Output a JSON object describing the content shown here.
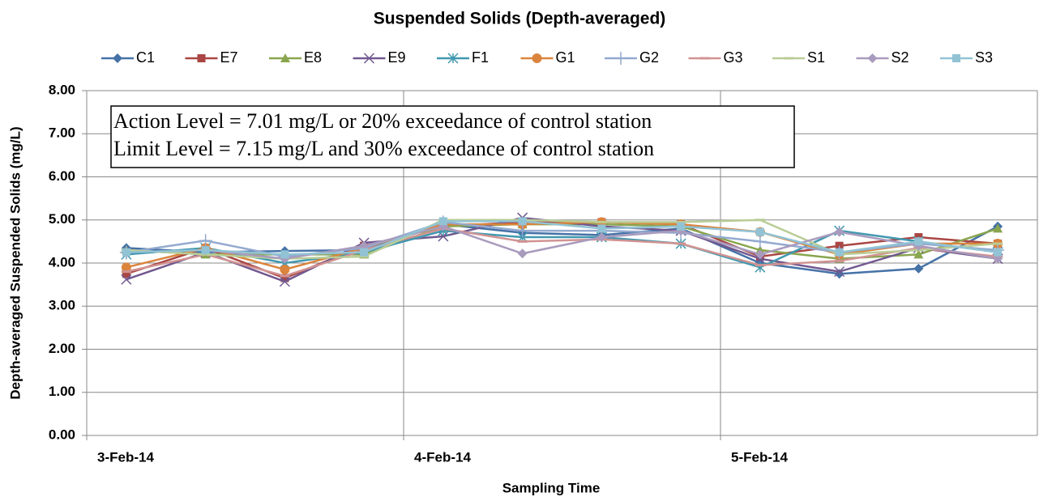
{
  "chart_data": {
    "type": "line",
    "title": "Suspended Solids (Depth-averaged)",
    "x_label": "Sampling Time",
    "y_label": "Depth-averaged Suspended Solids  (mg/L)",
    "annotations": [
      "Action Level = 7.01 mg/L or 20% exceedance of control station",
      "Limit Level = 7.15 mg/L and 30% exceedance of control station"
    ],
    "x": [
      0.125,
      0.375,
      0.625,
      0.875,
      1.125,
      1.375,
      1.625,
      1.875,
      2.125,
      2.375,
      2.625,
      2.875
    ],
    "xlim": [
      0,
      3
    ],
    "xticks": [
      {
        "value": 0,
        "label": "3-Feb-14"
      },
      {
        "value": 1,
        "label": "4-Feb-14"
      },
      {
        "value": 2,
        "label": "5-Feb-14"
      }
    ],
    "ylim": [
      0,
      8
    ],
    "yticks": [
      {
        "value": 0,
        "label": "0.00"
      },
      {
        "value": 1,
        "label": "1.00"
      },
      {
        "value": 2,
        "label": "2.00"
      },
      {
        "value": 3,
        "label": "3.00"
      },
      {
        "value": 4,
        "label": "4.00"
      },
      {
        "value": 5,
        "label": "5.00"
      },
      {
        "value": 6,
        "label": "6.00"
      },
      {
        "value": 7,
        "label": "7.00"
      },
      {
        "value": 8,
        "label": "8.00"
      }
    ],
    "grid": true,
    "legend": "top",
    "series": [
      {
        "name": "C1",
        "color": "#4572a7",
        "marker": "diamond",
        "values": [
          4.35,
          4.25,
          4.28,
          4.3,
          4.9,
          4.7,
          4.65,
          4.8,
          4.0,
          3.75,
          3.87,
          4.85
        ]
      },
      {
        "name": "E7",
        "color": "#aa4643",
        "marker": "square",
        "values": [
          3.75,
          4.35,
          3.65,
          4.4,
          4.85,
          4.95,
          4.95,
          4.9,
          4.15,
          4.4,
          4.6,
          4.45
        ]
      },
      {
        "name": "E8",
        "color": "#89a54e",
        "marker": "triangle",
        "values": [
          4.3,
          4.2,
          4.2,
          4.2,
          4.85,
          4.9,
          4.9,
          4.85,
          4.3,
          4.1,
          4.2,
          4.8
        ]
      },
      {
        "name": "E9",
        "color": "#71588f",
        "marker": "x",
        "values": [
          3.62,
          4.25,
          3.57,
          4.47,
          4.62,
          5.05,
          4.85,
          4.75,
          4.1,
          3.8,
          4.35,
          4.1
        ]
      },
      {
        "name": "F1",
        "color": "#4198af",
        "marker": "star",
        "values": [
          4.2,
          4.35,
          4.0,
          4.25,
          4.75,
          4.6,
          4.6,
          4.45,
          3.9,
          4.75,
          4.5,
          4.25
        ]
      },
      {
        "name": "G1",
        "color": "#db843d",
        "marker": "circle",
        "values": [
          3.9,
          4.35,
          3.85,
          4.35,
          4.9,
          4.9,
          4.95,
          4.9,
          4.72,
          4.2,
          4.45,
          4.45
        ]
      },
      {
        "name": "G2",
        "color": "#93a9cf",
        "marker": "plus",
        "values": [
          4.25,
          4.52,
          4.15,
          4.35,
          4.95,
          4.75,
          4.75,
          4.7,
          4.5,
          4.25,
          4.45,
          4.3
        ]
      },
      {
        "name": "G3",
        "color": "#d19392",
        "marker": "dash",
        "values": [
          3.8,
          4.2,
          3.7,
          4.3,
          4.8,
          4.5,
          4.55,
          4.45,
          3.95,
          4.05,
          4.35,
          4.15
        ]
      },
      {
        "name": "S1",
        "color": "#b9cd96",
        "marker": "dash",
        "values": [
          4.3,
          4.2,
          4.1,
          4.15,
          5.0,
          5.0,
          4.95,
          4.95,
          5.0,
          4.2,
          4.3,
          4.45
        ]
      },
      {
        "name": "S2",
        "color": "#a99bbd",
        "marker": "diamond",
        "values": [
          4.25,
          4.3,
          4.1,
          4.4,
          4.85,
          4.22,
          4.6,
          4.75,
          4.2,
          4.72,
          4.4,
          4.1
        ]
      },
      {
        "name": "S3",
        "color": "#92c3d5",
        "marker": "square",
        "values": [
          4.25,
          4.3,
          4.2,
          4.25,
          4.97,
          4.97,
          4.8,
          4.85,
          4.72,
          4.25,
          4.5,
          4.25
        ]
      }
    ]
  }
}
